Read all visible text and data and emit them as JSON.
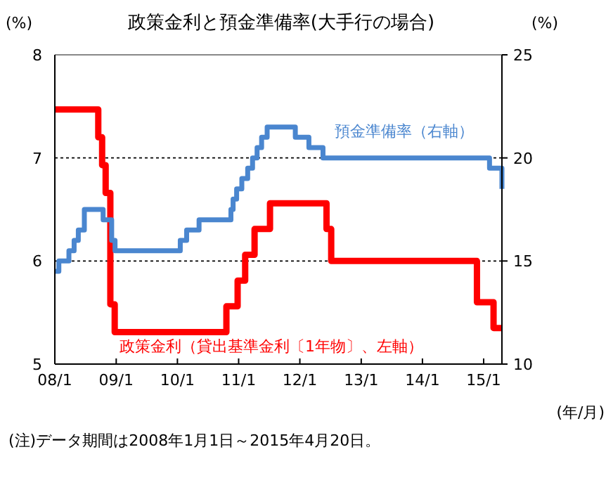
{
  "chart_data": {
    "type": "step",
    "title": "政策金利と預金準備率(大手行の場合)",
    "ylabel": "(%)",
    "y2label": "(%)",
    "xlabel": "(年/月)",
    "annotations": [
      "(注)データ期間は2008年1月1日～2015年4月20日。"
    ],
    "xlim": [
      "2008-01-01",
      "2015-04-20"
    ],
    "xticks": [
      {
        "value": "2008-01-01",
        "label": "08/1"
      },
      {
        "value": "2009-01-01",
        "label": "09/1"
      },
      {
        "value": "2010-01-01",
        "label": "10/1"
      },
      {
        "value": "2011-01-01",
        "label": "11/1"
      },
      {
        "value": "2012-01-01",
        "label": "12/1"
      },
      {
        "value": "2013-01-01",
        "label": "13/1"
      },
      {
        "value": "2014-01-01",
        "label": "14/1"
      },
      {
        "value": "2015-01-01",
        "label": "15/1"
      }
    ],
    "ylim": [
      5,
      8
    ],
    "yticks": [
      5,
      6,
      7,
      8
    ],
    "y2lim": [
      10,
      25
    ],
    "y2ticks": [
      10,
      15,
      20,
      25
    ],
    "grid": "y",
    "line_style": "solid",
    "marker": "none",
    "series": [
      {
        "name": "政策金利（貸出基準金利〔1年物〕、左軸）",
        "color": "#ff0000",
        "x": [
          "2008-01-01",
          "2008-09-16",
          "2008-10-09",
          "2008-10-30",
          "2008-11-27",
          "2008-12-23",
          "2010-10-20",
          "2010-12-26",
          "2011-02-09",
          "2011-04-06",
          "2011-07-07",
          "2012-06-08",
          "2012-07-06",
          "2014-11-22",
          "2015-03-01",
          "2015-04-20"
        ],
        "values": [
          7.47,
          7.2,
          6.93,
          6.66,
          5.58,
          5.31,
          5.56,
          5.81,
          6.06,
          6.31,
          6.56,
          6.31,
          6.0,
          5.6,
          5.35,
          5.35
        ]
      },
      {
        "name": "預金準備率（右軸）",
        "color": "#4a86cf",
        "axis": "y2",
        "x": [
          "2008-01-01",
          "2008-01-25",
          "2008-03-25",
          "2008-04-25",
          "2008-05-20",
          "2008-06-25",
          "2008-10-15",
          "2008-12-05",
          "2008-12-25",
          "2010-01-18",
          "2010-02-25",
          "2010-05-10",
          "2010-11-16",
          "2010-11-29",
          "2010-12-20",
          "2011-01-20",
          "2011-02-24",
          "2011-03-25",
          "2011-04-21",
          "2011-05-18",
          "2011-06-20",
          "2011-12-05",
          "2012-02-24",
          "2012-05-18",
          "2015-02-05",
          "2015-04-20"
        ],
        "values": [
          14.5,
          15,
          15.5,
          16,
          16.5,
          17.5,
          17,
          16,
          15.5,
          16,
          16.5,
          17,
          17.5,
          18,
          18.5,
          19,
          19.5,
          20,
          20.5,
          21,
          21.5,
          21,
          20.5,
          20,
          19.5,
          18.5
        ]
      }
    ]
  }
}
